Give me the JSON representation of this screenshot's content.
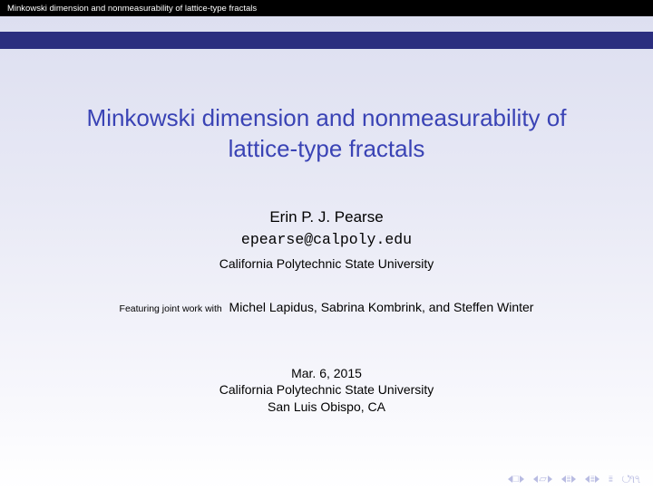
{
  "colors": {
    "topbar_bg": "#000000",
    "navband_bg": "#2b2e7f",
    "title_color": "#3a43b5",
    "body_text": "#000000",
    "footer_icon": "#b9bce2",
    "bg_gradient_top": "#dcdef0",
    "bg_gradient_bottom": "#ffffff"
  },
  "header": {
    "short_title": "Minkowski dimension and nonmeasurability of lattice-type fractals"
  },
  "title": {
    "line1": "Minkowski dimension and nonmeasurability of",
    "line2": "lattice-type fractals"
  },
  "author": {
    "name": "Erin P. J. Pearse",
    "email": "epearse@calpoly.edu",
    "affiliation": "California Polytechnic State University"
  },
  "collaboration": {
    "prefix": "Featuring joint work with",
    "names": "Michel Lapidus, Sabrina Kombrink, and Steffen Winter"
  },
  "venue": {
    "date": "Mar. 6, 2015",
    "institution": "California Polytechnic State University",
    "location": "San Luis Obispo, CA"
  },
  "footer_nav": {
    "items": [
      "first",
      "prev-section",
      "prev",
      "next",
      "last",
      "reload"
    ]
  }
}
